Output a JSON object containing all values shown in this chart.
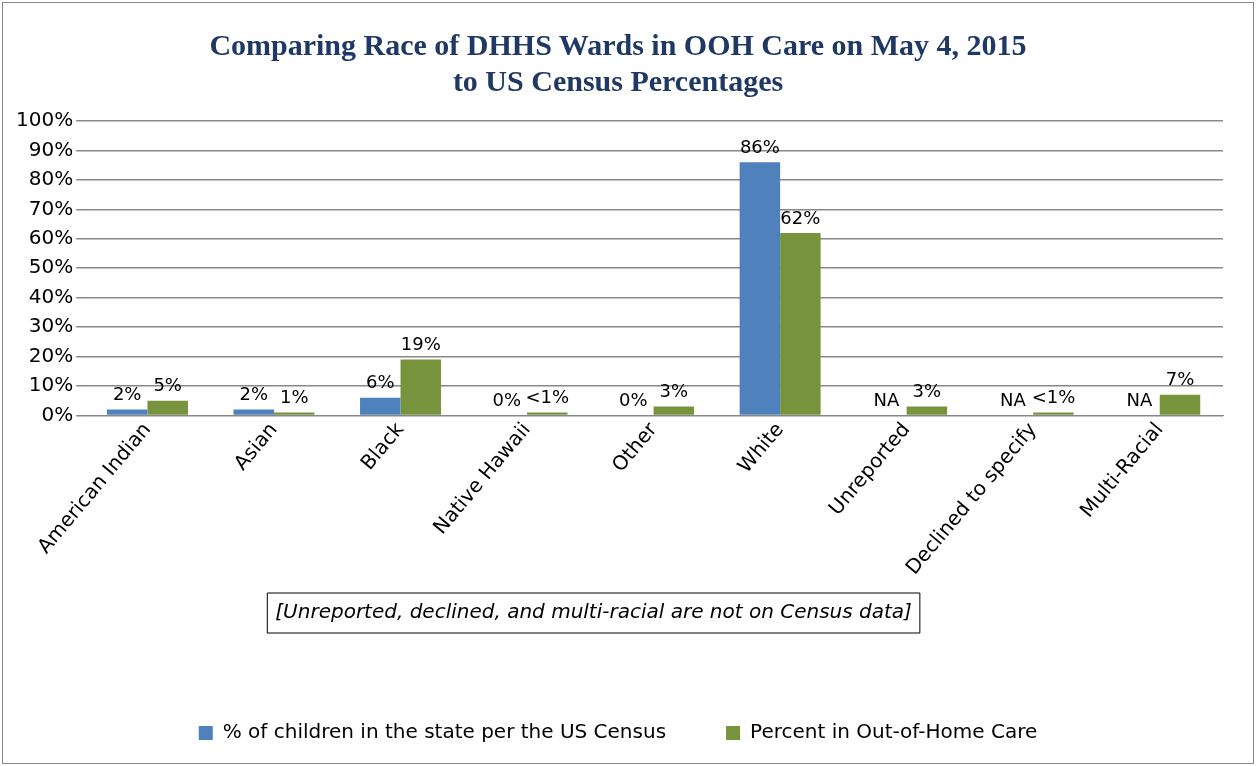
{
  "chart_data": {
    "type": "bar",
    "title": "Comparing Race of DHHS Wards in OOH Care on May 4, 2015\nto US Census Percentages",
    "categories": [
      "American Indian",
      "Asian",
      "Black",
      "Native Hawaii",
      "Other",
      "White",
      "Unreported",
      "Declined to specify",
      "Multi-Racial"
    ],
    "series": [
      {
        "name": "% of children in the state per the US Census",
        "color": "#4f81bd",
        "values": [
          2,
          2,
          6,
          0,
          0,
          86,
          null,
          null,
          null
        ],
        "value_labels": [
          "2%",
          "2%",
          "6%",
          "0%",
          "0%",
          "86%",
          "NA",
          "NA",
          "NA"
        ]
      },
      {
        "name": "Percent in Out-of-Home Care",
        "color": "#77933c",
        "values": [
          5,
          1,
          19,
          1,
          3,
          62,
          3,
          1,
          7
        ],
        "value_labels": [
          "5%",
          "1%",
          "19%",
          "<1%",
          "3%",
          "62%",
          "3%",
          "<1%",
          "7%"
        ]
      }
    ],
    "ylim": [
      0,
      100
    ],
    "yticks": [
      {
        "value": 0,
        "label": "0%"
      },
      {
        "value": 10,
        "label": "10%"
      },
      {
        "value": 20,
        "label": "20%"
      },
      {
        "value": 30,
        "label": "30%"
      },
      {
        "value": 40,
        "label": "40%"
      },
      {
        "value": 50,
        "label": "50%"
      },
      {
        "value": 60,
        "label": "60%"
      },
      {
        "value": 70,
        "label": "70%"
      },
      {
        "value": 80,
        "label": "80%"
      },
      {
        "value": 90,
        "label": "90%"
      },
      {
        "value": 100,
        "label": "100%"
      }
    ],
    "grid": "y",
    "legend": "bottom",
    "annotations": [
      "[Unreported, declined, and multi-racial are not on Census data]"
    ]
  }
}
